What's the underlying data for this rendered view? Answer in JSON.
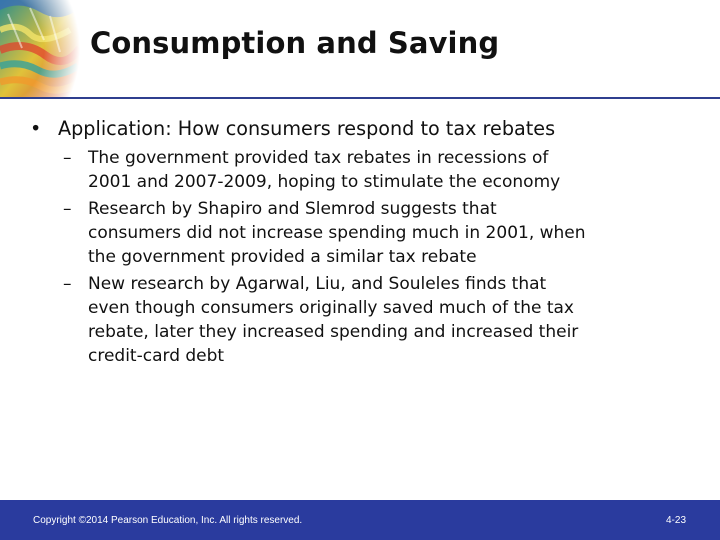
{
  "slide": {
    "title": "Consumption and Saving",
    "bullet": {
      "marker": "•",
      "text": "Application: How consumers respond to tax rebates"
    },
    "dash": "–",
    "sub_items": [
      {
        "lines": [
          "The government provided tax rebates in recessions of",
          "2001 and 2007-2009, hoping to stimulate the economy"
        ]
      },
      {
        "lines": [
          "Research by Shapiro and Slemrod suggests that",
          "consumers did not increase spending much in 2001, when",
          "the government provided a similar tax rebate"
        ]
      },
      {
        "lines": [
          "New research by Agarwal, Liu, and Souleles finds that",
          "even though consumers originally saved much of the tax",
          "rebate, later they increased spending and increased their",
          "credit-card debt"
        ]
      }
    ]
  },
  "footer": {
    "copyright": "Copyright ©2014 Pearson Education, Inc. All rights reserved.",
    "page_number": "4-23"
  },
  "colors": {
    "footer_bar": "#2a3b9e",
    "title_rule": "#2f3f8f",
    "text": "#111111"
  }
}
